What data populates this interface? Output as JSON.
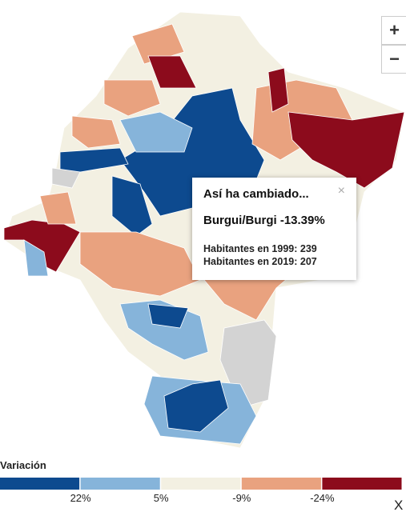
{
  "zoom": {
    "in": "+",
    "out": "−"
  },
  "tooltip": {
    "title": "Así ha cambiado...",
    "close": "×",
    "place": "Burgui/Burgi -13.39%",
    "lines": [
      "Habitantes en 1999: 239",
      "Habitantes en 2019: 207"
    ]
  },
  "legend": {
    "title": "Variación",
    "colors": [
      "#0d4a8f",
      "#86b4da",
      "#f3f0e2",
      "#e9a27f",
      "#8c0b1c"
    ],
    "labels": [
      "22%",
      "5%",
      "-9%",
      "-24%"
    ]
  },
  "corner_mark": "X"
}
